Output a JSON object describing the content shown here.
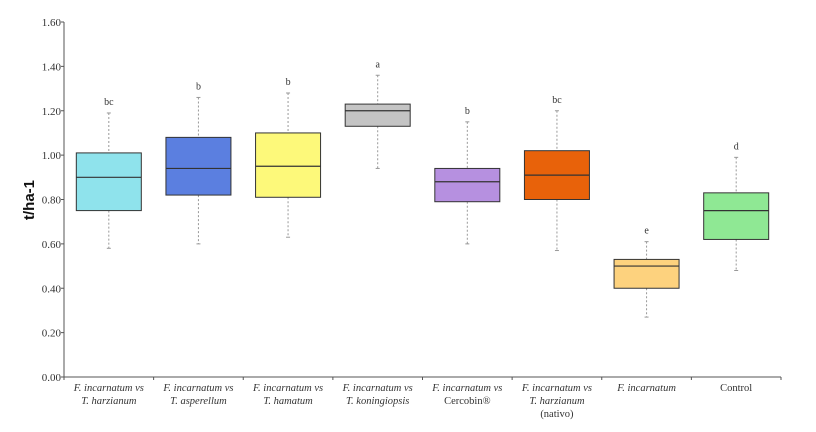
{
  "chart_data": {
    "type": "boxplot",
    "ylabel": "t/ha-1",
    "xlabel": "",
    "ylim": [
      0,
      1.6
    ],
    "yticks": [
      "0.00",
      "0.20",
      "0.40",
      "0.60",
      "0.80",
      "1.00",
      "1.20",
      "1.40",
      "1.60"
    ],
    "grid": false,
    "categories": [
      {
        "lines": [
          "F. incarnatum vs",
          "T. harzianum"
        ],
        "italic": [
          true,
          true
        ]
      },
      {
        "lines": [
          "F. incarnatum vs",
          "T. asperellum"
        ],
        "italic": [
          true,
          true
        ]
      },
      {
        "lines": [
          "F. incarnatum vs",
          "T. hamatum"
        ],
        "italic": [
          true,
          true
        ]
      },
      {
        "lines": [
          "F. incarnatum vs",
          "T. koningiopsis"
        ],
        "italic": [
          true,
          true
        ]
      },
      {
        "lines": [
          "F. incarnatum vs",
          "Cercobin®"
        ],
        "italic": [
          true,
          false
        ]
      },
      {
        "lines": [
          "F. incarnatum vs",
          "T. harzianum",
          "(nativo)"
        ],
        "italic": [
          true,
          true,
          false
        ]
      },
      {
        "lines": [
          "F. incarnatum"
        ],
        "italic": [
          true
        ]
      },
      {
        "lines": [
          "Control"
        ],
        "italic": [
          false
        ]
      }
    ],
    "boxes": [
      {
        "min": 0.58,
        "q1": 0.75,
        "median": 0.9,
        "q3": 1.01,
        "max": 1.19,
        "letter": "bc",
        "color": "#8fe3ec"
      },
      {
        "min": 0.6,
        "q1": 0.82,
        "median": 0.94,
        "q3": 1.08,
        "max": 1.26,
        "letter": "b",
        "color": "#5b7fe0"
      },
      {
        "min": 0.63,
        "q1": 0.81,
        "median": 0.95,
        "q3": 1.1,
        "max": 1.28,
        "letter": "b",
        "color": "#fdf97a"
      },
      {
        "min": 0.94,
        "q1": 1.13,
        "median": 1.2,
        "q3": 1.23,
        "max": 1.36,
        "letter": "a",
        "color": "#c4c4c4"
      },
      {
        "min": 0.6,
        "q1": 0.79,
        "median": 0.88,
        "q3": 0.94,
        "max": 1.15,
        "letter": "b",
        "color": "#b690e0"
      },
      {
        "min": 0.57,
        "q1": 0.8,
        "median": 0.91,
        "q3": 1.02,
        "max": 1.2,
        "letter": "bc",
        "color": "#e8620a"
      },
      {
        "min": 0.27,
        "q1": 0.4,
        "median": 0.5,
        "q3": 0.53,
        "max": 0.61,
        "letter": "e",
        "color": "#fdd27e"
      },
      {
        "min": 0.48,
        "q1": 0.62,
        "median": 0.75,
        "q3": 0.83,
        "max": 0.99,
        "letter": "d",
        "color": "#8fe894"
      }
    ]
  }
}
